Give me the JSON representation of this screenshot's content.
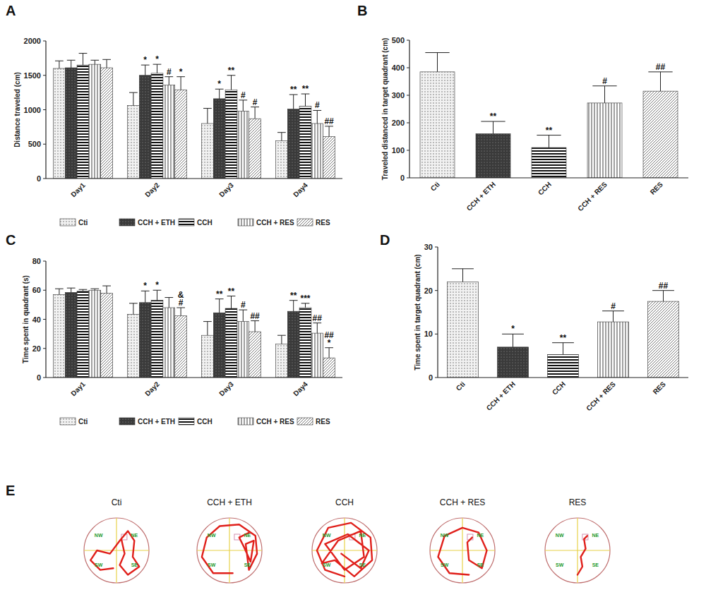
{
  "chart_data": [
    {
      "type": "bar",
      "y_label": "Distance traveled (cm)",
      "categories": [
        "Day1",
        "Day2",
        "Day3",
        "Day4"
      ],
      "series": [
        {
          "name": "Cti",
          "color": "#f2f2f2",
          "values": [
            1600,
            1060,
            800,
            550
          ],
          "errors": [
            110,
            190,
            220,
            120
          ]
        },
        {
          "name": "CCH + ETH",
          "color": "#3a3a3a",
          "values": [
            1610,
            1500,
            1160,
            1010
          ],
          "errors": [
            110,
            150,
            140,
            210
          ],
          "significance": [
            null,
            "*",
            "*",
            "**"
          ]
        },
        {
          "name": "CCH",
          "color": "#111111",
          "values": [
            1650,
            1530,
            1290,
            1050
          ],
          "errors": [
            170,
            130,
            210,
            180
          ],
          "significance": [
            null,
            "*",
            "**",
            "**"
          ]
        },
        {
          "name": "CCH + RES",
          "color": "#777777",
          "values": [
            1660,
            1360,
            980,
            800
          ],
          "errors": [
            60,
            120,
            160,
            190
          ],
          "significance": [
            null,
            "#",
            "#",
            "#"
          ]
        },
        {
          "name": "RES",
          "color": "#666666",
          "values": [
            1610,
            1290,
            870,
            610
          ],
          "errors": [
            120,
            190,
            170,
            150
          ],
          "significance": [
            null,
            "*",
            "#",
            "##"
          ]
        }
      ],
      "ylim": [
        0,
        2000
      ],
      "yticks": [
        0,
        500,
        1000,
        1500,
        2000
      ],
      "legend": "bottom"
    },
    {
      "type": "bar",
      "y_label": "Traveled distanced in target quadrant (cm)",
      "categories": [
        "Cti",
        "CCH + ETH",
        "CCH",
        "CCH + RES",
        "RES"
      ],
      "values": [
        385,
        160,
        110,
        272,
        315
      ],
      "errors": [
        70,
        45,
        45,
        62,
        70
      ],
      "significance": [
        null,
        "**",
        "**",
        "#",
        "##"
      ],
      "colors": [
        "#f2f2f2",
        "#3a3a3a",
        "#111111",
        "#777777",
        "#666666"
      ],
      "ylim": [
        0,
        500
      ],
      "yticks": [
        0,
        100,
        200,
        300,
        400,
        500
      ]
    },
    {
      "type": "bar",
      "y_label": "Time spent in quadrant (s)",
      "categories": [
        "Day1",
        "Day2",
        "Day3",
        "Day4"
      ],
      "series": [
        {
          "name": "Cti",
          "color": "#f2f2f2",
          "values": [
            57,
            43.5,
            29,
            23
          ],
          "errors": [
            4,
            7.5,
            9.5,
            6
          ]
        },
        {
          "name": "CCH + ETH",
          "color": "#3a3a3a",
          "values": [
            58.5,
            51.5,
            44.5,
            45.5
          ],
          "errors": [
            3,
            8,
            9.5,
            7.5
          ],
          "significance": [
            null,
            "*",
            "**",
            "**"
          ]
        },
        {
          "name": "CCH",
          "color": "#111111",
          "values": [
            59.5,
            53,
            47.5,
            48
          ],
          "errors": [
            1,
            7,
            8.5,
            3
          ],
          "significance": [
            null,
            "*",
            "**",
            "***"
          ]
        },
        {
          "name": "CCH + RES",
          "color": "#777777",
          "values": [
            60,
            48,
            38.5,
            30.5
          ],
          "errors": [
            1,
            7,
            8,
            7
          ],
          "significance": [
            null,
            null,
            "#",
            "##"
          ]
        },
        {
          "name": "RES",
          "color": "#666666",
          "values": [
            58,
            42.5,
            31.5,
            13.5
          ],
          "errors": [
            5,
            5.5,
            7.5,
            7
          ],
          "significance": [
            null,
            [
              "&",
              "#"
            ],
            "##",
            [
              "##",
              "*"
            ]
          ]
        }
      ],
      "ylim": [
        0,
        80
      ],
      "yticks": [
        0,
        20,
        40,
        60,
        80
      ],
      "legend": "bottom"
    },
    {
      "type": "bar",
      "y_label": "Time spent in target quadrant (cm)",
      "categories": [
        "Cti",
        "CCH + ETH",
        "CCH",
        "CCH + RES",
        "RES"
      ],
      "values": [
        22,
        7,
        5.3,
        12.8,
        17.5
      ],
      "errors": [
        3,
        3,
        2.7,
        2.5,
        2.5
      ],
      "significance": [
        null,
        "*",
        "**",
        "#",
        "##"
      ],
      "colors": [
        "#f2f2f2",
        "#3a3a3a",
        "#111111",
        "#777777",
        "#666666"
      ],
      "ylim": [
        0,
        30
      ],
      "yticks": [
        0,
        10,
        20,
        30
      ]
    }
  ],
  "panel_labels": [
    "A",
    "B",
    "C",
    "D",
    "E"
  ],
  "swim_paths": {
    "titles": [
      "Cti",
      "CCH + ETH",
      "CCH",
      "CCH + RES",
      "RES"
    ],
    "quadrant_labels": [
      "NW",
      "NE",
      "SW",
      "SE"
    ]
  }
}
